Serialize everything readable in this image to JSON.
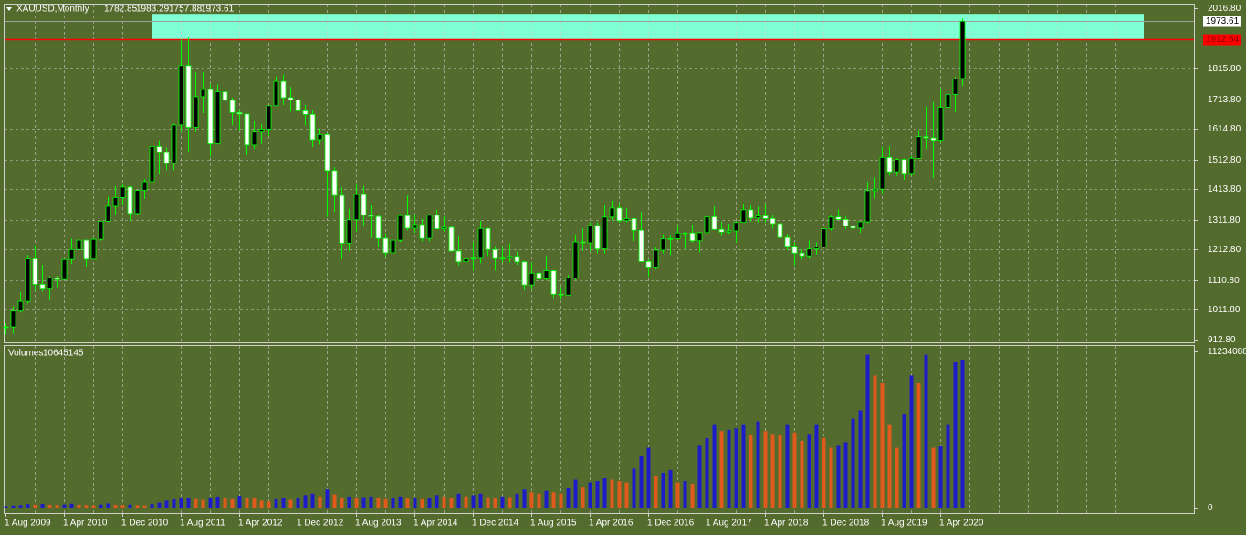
{
  "chart_data": {
    "type": "candlestick",
    "symbol": "XAUUSD,Monthly",
    "categories": [
      "1 Aug 2009",
      null,
      null,
      null,
      null,
      null,
      null,
      null,
      "1 Apr 2010",
      null,
      null,
      null,
      null,
      null,
      null,
      null,
      "1 Dec 2010",
      null,
      null,
      null,
      null,
      null,
      null,
      null,
      "1 Aug 2011",
      null,
      null,
      null,
      null,
      null,
      null,
      null,
      "1 Apr 2012",
      null,
      null,
      null,
      null,
      null,
      null,
      null,
      "1 Dec 2012",
      null,
      null,
      null,
      null,
      null,
      null,
      null,
      "1 Aug 2013",
      null,
      null,
      null,
      null,
      null,
      null,
      null,
      "1 Apr 2014",
      null,
      null,
      null,
      null,
      null,
      null,
      null,
      "1 Dec 2014",
      null,
      null,
      null,
      null,
      null,
      null,
      null,
      "1 Aug 2015",
      null,
      null,
      null,
      null,
      null,
      null,
      null,
      "1 Apr 2016",
      null,
      null,
      null,
      null,
      null,
      null,
      null,
      "1 Dec 2016",
      null,
      null,
      null,
      null,
      null,
      null,
      null,
      "1 Aug 2017",
      null,
      null,
      null,
      null,
      null,
      null,
      null,
      "1 Apr 2018",
      null,
      null,
      null,
      null,
      null,
      null,
      null,
      "1 Dec 2018",
      null,
      null,
      null,
      null,
      null,
      null,
      null,
      "1 Aug 2019",
      null,
      null,
      null,
      null,
      null,
      null,
      null,
      "1 Apr 2020",
      null,
      null,
      null
    ],
    "candles": [
      [
        953,
        967,
        930,
        955
      ],
      [
        955,
        1024,
        932,
        1008
      ],
      [
        1008,
        1071,
        1003,
        1040
      ],
      [
        1040,
        1195,
        1033,
        1182
      ],
      [
        1182,
        1227,
        1076,
        1097
      ],
      [
        1097,
        1162,
        1072,
        1081
      ],
      [
        1081,
        1124,
        1044,
        1118
      ],
      [
        1118,
        1126,
        1088,
        1113
      ],
      [
        1113,
        1180,
        1113,
        1180
      ],
      [
        1180,
        1249,
        1165,
        1213
      ],
      [
        1213,
        1265,
        1200,
        1244
      ],
      [
        1244,
        1246,
        1155,
        1181
      ],
      [
        1181,
        1252,
        1179,
        1247
      ],
      [
        1247,
        1308,
        1242,
        1307
      ],
      [
        1307,
        1388,
        1305,
        1357
      ],
      [
        1357,
        1424,
        1330,
        1386
      ],
      [
        1386,
        1431,
        1360,
        1421
      ],
      [
        1421,
        1424,
        1308,
        1333
      ],
      [
        1333,
        1411,
        1327,
        1410
      ],
      [
        1410,
        1448,
        1381,
        1439
      ],
      [
        1439,
        1575,
        1420,
        1556
      ],
      [
        1556,
        1577,
        1462,
        1536
      ],
      [
        1536,
        1553,
        1478,
        1500
      ],
      [
        1500,
        1632,
        1478,
        1628
      ],
      [
        1628,
        1913,
        1604,
        1826
      ],
      [
        1826,
        1921,
        1535,
        1620
      ],
      [
        1620,
        1803,
        1603,
        1722
      ],
      [
        1722,
        1803,
        1667,
        1746
      ],
      [
        1746,
        1764,
        1523,
        1565
      ],
      [
        1565,
        1763,
        1563,
        1738
      ],
      [
        1738,
        1791,
        1696,
        1710
      ],
      [
        1710,
        1719,
        1627,
        1669
      ],
      [
        1669,
        1676,
        1610,
        1664
      ],
      [
        1664,
        1666,
        1527,
        1561
      ],
      [
        1561,
        1640,
        1548,
        1604
      ],
      [
        1604,
        1631,
        1565,
        1614
      ],
      [
        1614,
        1692,
        1590,
        1692
      ],
      [
        1692,
        1790,
        1690,
        1773
      ],
      [
        1773,
        1796,
        1694,
        1719
      ],
      [
        1719,
        1755,
        1672,
        1711
      ],
      [
        1711,
        1725,
        1636,
        1675
      ],
      [
        1675,
        1695,
        1626,
        1663
      ],
      [
        1663,
        1677,
        1555,
        1579
      ],
      [
        1579,
        1617,
        1562,
        1596
      ],
      [
        1596,
        1600,
        1321,
        1476
      ],
      [
        1476,
        1487,
        1338,
        1393
      ],
      [
        1393,
        1420,
        1180,
        1234
      ],
      [
        1234,
        1348,
        1208,
        1312
      ],
      [
        1312,
        1434,
        1271,
        1396
      ],
      [
        1396,
        1424,
        1290,
        1327
      ],
      [
        1327,
        1361,
        1251,
        1323
      ],
      [
        1323,
        1327,
        1221,
        1250
      ],
      [
        1250,
        1267,
        1186,
        1202
      ],
      [
        1202,
        1280,
        1200,
        1244
      ],
      [
        1244,
        1332,
        1238,
        1326
      ],
      [
        1326,
        1392,
        1277,
        1284
      ],
      [
        1284,
        1331,
        1268,
        1296
      ],
      [
        1296,
        1315,
        1240,
        1250
      ],
      [
        1250,
        1332,
        1240,
        1327
      ],
      [
        1327,
        1345,
        1280,
        1282
      ],
      [
        1282,
        1323,
        1272,
        1287
      ],
      [
        1287,
        1291,
        1206,
        1208
      ],
      [
        1208,
        1255,
        1160,
        1172
      ],
      [
        1172,
        1206,
        1131,
        1182
      ],
      [
        1182,
        1239,
        1142,
        1184
      ],
      [
        1184,
        1308,
        1167,
        1283
      ],
      [
        1283,
        1285,
        1192,
        1213
      ],
      [
        1213,
        1224,
        1142,
        1183
      ],
      [
        1183,
        1224,
        1170,
        1184
      ],
      [
        1184,
        1233,
        1170,
        1190
      ],
      [
        1190,
        1205,
        1162,
        1172
      ],
      [
        1172,
        1175,
        1077,
        1095
      ],
      [
        1095,
        1170,
        1080,
        1134
      ],
      [
        1134,
        1157,
        1098,
        1115
      ],
      [
        1115,
        1192,
        1110,
        1142
      ],
      [
        1142,
        1145,
        1052,
        1064
      ],
      [
        1064,
        1088,
        1046,
        1061
      ],
      [
        1061,
        1129,
        1061,
        1118
      ],
      [
        1118,
        1263,
        1110,
        1238
      ],
      [
        1238,
        1283,
        1208,
        1235
      ],
      [
        1235,
        1304,
        1207,
        1293
      ],
      [
        1293,
        1304,
        1200,
        1215
      ],
      [
        1215,
        1362,
        1200,
        1321
      ],
      [
        1321,
        1375,
        1310,
        1351
      ],
      [
        1351,
        1367,
        1302,
        1309
      ],
      [
        1309,
        1352,
        1304,
        1316
      ],
      [
        1316,
        1317,
        1241,
        1277
      ],
      [
        1277,
        1338,
        1171,
        1173
      ],
      [
        1173,
        1180,
        1123,
        1152
      ],
      [
        1152,
        1220,
        1147,
        1211
      ],
      [
        1211,
        1264,
        1200,
        1249
      ],
      [
        1249,
        1262,
        1195,
        1249
      ],
      [
        1249,
        1295,
        1245,
        1268
      ],
      [
        1268,
        1270,
        1214,
        1268
      ],
      [
        1268,
        1296,
        1236,
        1242
      ],
      [
        1242,
        1272,
        1204,
        1269
      ],
      [
        1269,
        1331,
        1266,
        1322
      ],
      [
        1322,
        1357,
        1278,
        1280
      ],
      [
        1280,
        1306,
        1260,
        1271
      ],
      [
        1271,
        1299,
        1265,
        1275
      ],
      [
        1275,
        1307,
        1236,
        1303
      ],
      [
        1303,
        1366,
        1302,
        1345
      ],
      [
        1345,
        1361,
        1306,
        1318
      ],
      [
        1318,
        1356,
        1303,
        1325
      ],
      [
        1325,
        1365,
        1301,
        1316
      ],
      [
        1316,
        1326,
        1282,
        1299
      ],
      [
        1299,
        1309,
        1246,
        1253
      ],
      [
        1253,
        1265,
        1211,
        1224
      ],
      [
        1224,
        1237,
        1160,
        1201
      ],
      [
        1201,
        1214,
        1180,
        1192
      ],
      [
        1192,
        1243,
        1182,
        1215
      ],
      [
        1215,
        1237,
        1196,
        1222
      ],
      [
        1222,
        1284,
        1221,
        1282
      ],
      [
        1282,
        1326,
        1276,
        1321
      ],
      [
        1321,
        1346,
        1310,
        1313
      ],
      [
        1313,
        1324,
        1281,
        1292
      ],
      [
        1292,
        1298,
        1266,
        1284
      ],
      [
        1284,
        1306,
        1267,
        1305
      ],
      [
        1305,
        1439,
        1301,
        1409
      ],
      [
        1409,
        1453,
        1382,
        1414
      ],
      [
        1414,
        1555,
        1400,
        1520
      ],
      [
        1520,
        1557,
        1459,
        1472
      ],
      [
        1472,
        1517,
        1458,
        1513
      ],
      [
        1513,
        1516,
        1445,
        1464
      ],
      [
        1464,
        1525,
        1459,
        1517
      ],
      [
        1517,
        1611,
        1517,
        1589
      ],
      [
        1589,
        1689,
        1548,
        1585
      ],
      [
        1585,
        1704,
        1451,
        1577
      ],
      [
        1577,
        1747,
        1568,
        1687
      ],
      [
        1687,
        1765,
        1669,
        1730
      ],
      [
        1730,
        1789,
        1670,
        1781
      ],
      [
        1782.85,
        1983.29,
        1757.88,
        1973.61
      ]
    ],
    "ylim": [
      912.8,
      2016.8
    ],
    "yticks": [
      {
        "value": 2016.8,
        "label": "2016.80"
      },
      {
        "value": 1815.8,
        "label": "1815.80"
      },
      {
        "value": 1713.8,
        "label": "1713.80"
      },
      {
        "value": 1614.8,
        "label": "1614.80"
      },
      {
        "value": 1512.8,
        "label": "1512.80"
      },
      {
        "value": 1413.8,
        "label": "1413.80"
      },
      {
        "value": 1311.8,
        "label": "1311.80"
      },
      {
        "value": 1212.8,
        "label": "1212.80"
      },
      {
        "value": 1110.8,
        "label": "1110.80"
      },
      {
        "value": 1011.8,
        "label": "1011.80"
      },
      {
        "value": 912.8,
        "label": "912.80"
      }
    ],
    "grid": true,
    "hline": 1912.64,
    "hline_color": "#ff0000",
    "zone": [
      1912.64,
      1998
    ],
    "zone_color": "#7fffd4",
    "bull_color": "#000000",
    "bear_color": "#ffffff",
    "wick_color": "#00ff00",
    "volume_label": "Volumes",
    "volumes": [
      100000,
      150000,
      180000,
      250000,
      200000,
      260000,
      200000,
      190000,
      220000,
      280000,
      200000,
      180000,
      160000,
      220000,
      300000,
      200000,
      180000,
      220000,
      180000,
      150000,
      250000,
      350000,
      500000,
      600000,
      650000,
      700000,
      600000,
      550000,
      700000,
      800000,
      700000,
      600000,
      850000,
      700000,
      650000,
      500000,
      450000,
      600000,
      700000,
      550000,
      650000,
      900000,
      1000000,
      800000,
      1300000,
      950000,
      700000,
      800000,
      650000,
      750000,
      800000,
      700000,
      600000,
      700000,
      800000,
      650000,
      700000,
      600000,
      650000,
      900000,
      800000,
      700000,
      1000000,
      800000,
      900000,
      1000000,
      750000,
      700000,
      800000,
      750000,
      1000000,
      1300000,
      1100000,
      1000000,
      1200000,
      1100000,
      1000000,
      1400000,
      2000000,
      1500000,
      1800000,
      1900000,
      2100000,
      2000000,
      1900000,
      1800000,
      2800000,
      3700000,
      4300000,
      2300000,
      2500000,
      2700000,
      1800000,
      1900000,
      1700000,
      4500000,
      5000000,
      6000000,
      5500000,
      5600000,
      5700000,
      6000000,
      5200000,
      6200000,
      5500000,
      5300000,
      5200000,
      6000000,
      5400000,
      4800000,
      5300000,
      6000000,
      5000000,
      4300000,
      4500000,
      4700000,
      6400000,
      7000000,
      11000000,
      9500000,
      9000000,
      6000000,
      4300000,
      6700000,
      9500000,
      9000000,
      11000000,
      4300000,
      4400000,
      6000000,
      10500000,
      10645145
    ],
    "volume_ylim": [
      0,
      11234088
    ],
    "volume_yticks": [
      11234088,
      0
    ],
    "volume_up_color": "#1c1cc8",
    "volume_down_color": "#e05a1c"
  }
}
